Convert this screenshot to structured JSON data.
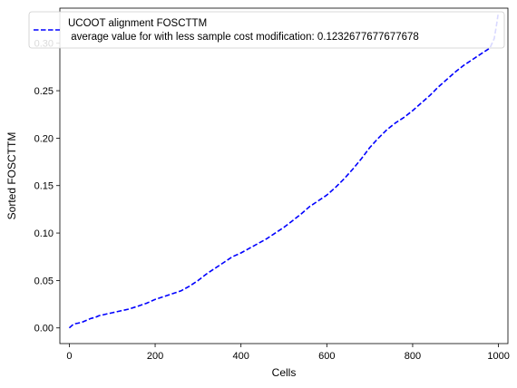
{
  "chart_data": {
    "type": "line",
    "title": "",
    "xlabel": "Cells",
    "ylabel": "Sorted FOSCTTM",
    "xlim": [
      -22,
      1022
    ],
    "ylim": [
      -0.0165,
      0.337
    ],
    "x_ticks": [
      0,
      200,
      400,
      600,
      800,
      1000
    ],
    "x_tick_labels": [
      "0",
      "200",
      "400",
      "600",
      "800",
      "1000"
    ],
    "y_ticks": [
      0.0,
      0.05,
      0.1,
      0.15,
      0.2,
      0.25,
      0.3
    ],
    "y_tick_labels": [
      "0.00",
      "0.05",
      "0.10",
      "0.15",
      "0.20",
      "0.25",
      "0.30"
    ],
    "grid": false,
    "legend_position": "top",
    "series": [
      {
        "name": "UCOOT alignment FOSCTTM\n average value for with less sample cost modification: 0.1232677677677678",
        "color": "#0000ff",
        "line_style": "dashed",
        "x": [
          0,
          10,
          20,
          30,
          40,
          50,
          60,
          70,
          80,
          90,
          100,
          120,
          140,
          160,
          180,
          200,
          220,
          240,
          260,
          280,
          300,
          320,
          340,
          360,
          380,
          400,
          420,
          440,
          460,
          480,
          500,
          520,
          540,
          560,
          580,
          600,
          620,
          640,
          660,
          680,
          700,
          720,
          740,
          760,
          780,
          800,
          820,
          840,
          860,
          880,
          900,
          920,
          940,
          960,
          980,
          990,
          995,
          999
        ],
        "y": [
          0.0,
          0.004,
          0.005,
          0.006,
          0.008,
          0.01,
          0.011,
          0.013,
          0.014,
          0.015,
          0.016,
          0.018,
          0.02,
          0.023,
          0.026,
          0.03,
          0.033,
          0.036,
          0.039,
          0.044,
          0.05,
          0.057,
          0.063,
          0.069,
          0.075,
          0.079,
          0.084,
          0.089,
          0.094,
          0.1,
          0.106,
          0.113,
          0.12,
          0.128,
          0.134,
          0.14,
          0.148,
          0.157,
          0.167,
          0.178,
          0.19,
          0.2,
          0.209,
          0.216,
          0.222,
          0.229,
          0.237,
          0.245,
          0.254,
          0.262,
          0.27,
          0.277,
          0.283,
          0.289,
          0.295,
          0.305,
          0.318,
          0.33
        ]
      }
    ]
  }
}
